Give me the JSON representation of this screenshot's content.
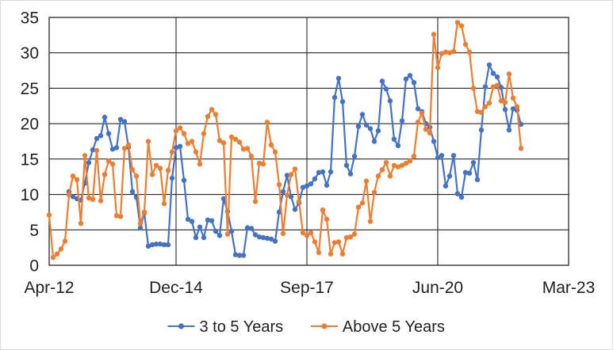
{
  "chart_data": {
    "type": "line",
    "title": "",
    "xlabel": "",
    "ylabel": "",
    "grid": true,
    "legend_position": "bottom-center",
    "y_axis": {
      "min": 0,
      "max": 35,
      "ticks": [
        0,
        5,
        10,
        15,
        20,
        25,
        30,
        35
      ]
    },
    "x_axis": {
      "total_months": 131,
      "start_label": "Apr-12",
      "end_label": "Mar-23",
      "ticks": [
        {
          "label": "Apr-12",
          "month": 0
        },
        {
          "label": "Dec-14",
          "month": 32
        },
        {
          "label": "Sep-17",
          "month": 65
        },
        {
          "label": "Jun-20",
          "month": 98
        },
        {
          "label": "Mar-23",
          "month": 131
        }
      ]
    },
    "series": [
      {
        "name": "3 to 5 Years",
        "color": "#4472C4",
        "values": [
          null,
          null,
          null,
          null,
          null,
          10.4,
          9.7,
          9.4,
          9.2,
          11.6,
          14.5,
          16.3,
          17.9,
          18.3,
          20.9,
          18.6,
          16.4,
          16.6,
          20.6,
          20.3,
          16.7,
          10.4,
          9.6,
          5.3,
          7.4,
          2.7,
          2.9,
          3.0,
          3.0,
          2.9,
          2.9,
          12.3,
          16.6,
          16.8,
          12.0,
          6.5,
          6.2,
          3.9,
          5.4,
          3.9,
          6.4,
          6.3,
          4.8,
          4.2,
          9.4,
          7.6,
          4.8,
          1.5,
          1.4,
          1.4,
          5.3,
          5.2,
          4.3,
          4.0,
          3.9,
          3.8,
          3.7,
          3.4,
          7.5,
          10.4,
          12.7,
          9.7,
          7.9,
          8.8,
          11.0,
          11.2,
          11.5,
          12.2,
          13.1,
          13.2,
          11.3,
          13.2,
          23.7,
          26.4,
          23.1,
          14.1,
          12.9,
          15.4,
          19.6,
          21.3,
          19.8,
          19.3,
          17.5,
          19.0,
          26.0,
          24.9,
          23.2,
          17.8,
          16.9,
          20.4,
          26.3,
          26.8,
          25.8,
          22.1,
          21.7,
          20.0,
          19.5,
          17.5,
          15.2,
          15.5,
          11.2,
          12.6,
          15.5,
          10.1,
          9.6,
          13.1,
          13.0,
          14.5,
          12.1,
          19.1,
          25.2,
          28.3,
          27.1,
          26.6,
          25.1,
          22.0,
          19.1,
          22.1,
          21.9,
          19.9
        ]
      },
      {
        "name": "Above 5 Years",
        "color": "#ED7D31",
        "values": [
          7.1,
          1.1,
          1.6,
          2.3,
          3.4,
          10.0,
          12.6,
          12.1,
          5.9,
          15.5,
          9.5,
          9.3,
          16.2,
          9.1,
          12.8,
          14.7,
          14.3,
          7.0,
          6.9,
          16.5,
          17.0,
          13.5,
          12.6,
          5.9,
          7.5,
          17.5,
          12.8,
          14.1,
          13.7,
          8.7,
          13.4,
          16.0,
          19.0,
          19.4,
          18.6,
          17.2,
          17.5,
          16.0,
          14.3,
          18.6,
          21.0,
          22.0,
          21.3,
          17.6,
          17.3,
          4.4,
          18.1,
          17.8,
          17.4,
          16.4,
          16.5,
          15.4,
          9.0,
          14.4,
          14.3,
          20.2,
          17.0,
          16.0,
          11.4,
          4.5,
          9.9,
          12.8,
          13.6,
          9.0,
          4.6,
          4.2,
          4.6,
          3.3,
          1.8,
          7.8,
          6.5,
          1.6,
          3.2,
          3.3,
          1.6,
          3.9,
          4.0,
          4.4,
          8.2,
          8.8,
          11.9,
          6.2,
          10.3,
          12.6,
          13.5,
          14.5,
          12.6,
          14.1,
          13.9,
          14.1,
          14.4,
          14.7,
          15.4,
          20.2,
          21.5,
          19.2,
          18.7,
          32.6,
          27.9,
          29.9,
          30.1,
          30.0,
          30.2,
          34.3,
          33.8,
          31.2,
          30.1,
          25.0,
          21.7,
          21.6,
          22.4,
          22.9,
          25.2,
          25.4,
          23.2,
          23.0,
          27.0,
          23.6,
          22.4,
          16.5
        ]
      }
    ],
    "style": {
      "gridline_color": "#262626",
      "text_color": "#212121",
      "background": "#ffffff",
      "marker_radius": 3.2,
      "line_width": 2.2
    }
  }
}
